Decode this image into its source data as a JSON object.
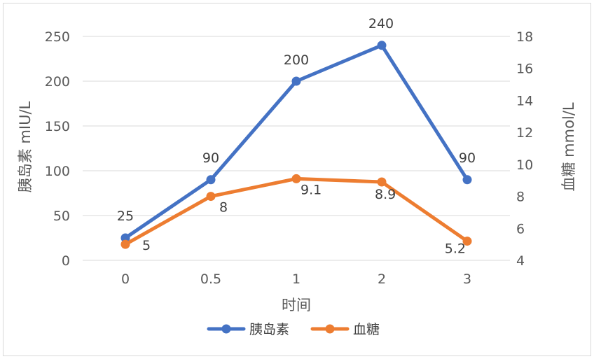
{
  "chart_data": {
    "type": "line",
    "categories": [
      "0",
      "0.5",
      "1",
      "2",
      "3"
    ],
    "xlabel": "时间",
    "y_left": {
      "label": "胰岛素 mIU/L",
      "range": [
        0,
        250
      ],
      "ticks": [
        "0",
        "50",
        "100",
        "150",
        "200",
        "250"
      ]
    },
    "y_right": {
      "label": "血糖 mmol/L",
      "range": [
        4,
        18
      ],
      "ticks": [
        "4",
        "6",
        "8",
        "10",
        "12",
        "14",
        "16",
        "18"
      ]
    },
    "grid": true,
    "legend_position": "bottom",
    "series": [
      {
        "name": "胰岛素",
        "axis": "left",
        "color": "#4472c4",
        "values": [
          25,
          90,
          200,
          240,
          90
        ],
        "labels": [
          "25",
          "90",
          "200",
          "240",
          "90"
        ]
      },
      {
        "name": "血糖",
        "axis": "right",
        "color": "#ed7d31",
        "values": [
          5,
          8,
          9.1,
          8.9,
          5.2
        ],
        "labels": [
          "5",
          "8",
          "9.1",
          "8.9",
          "5.2"
        ]
      }
    ]
  }
}
